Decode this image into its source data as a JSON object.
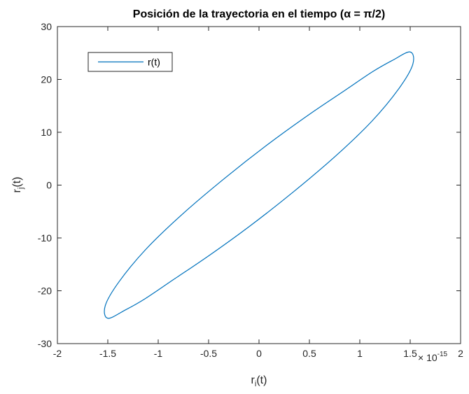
{
  "chart_data": {
    "type": "line",
    "title": "Posición de la trayectoria en el tiempo (α = π/2)",
    "xlabel": {
      "main": "r",
      "sub": "i",
      "tail": "(t)"
    },
    "ylabel": {
      "main": "r",
      "sub": "j",
      "tail": "(t)"
    },
    "x_exponent": {
      "prefix": "× 10",
      "power": "-15"
    },
    "xlim": [
      -2,
      2
    ],
    "ylim": [
      -30,
      30
    ],
    "x_ticks": [
      -2,
      -1.5,
      -1,
      -0.5,
      0,
      0.5,
      1,
      1.5,
      2
    ],
    "x_tick_labels": [
      "-2",
      "-1.5",
      "-1",
      "-0.5",
      "0",
      "0.5",
      "1",
      "1.5",
      "2"
    ],
    "y_ticks": [
      -30,
      -20,
      -10,
      0,
      10,
      20,
      30
    ],
    "y_tick_labels": [
      "-30",
      "-20",
      "-10",
      "0",
      "10",
      "20",
      "30"
    ],
    "grid": false,
    "legend": {
      "position": "top-left",
      "entries": [
        "r(t)"
      ]
    },
    "series": [
      {
        "name": "r(t)",
        "color": "#0072BD",
        "shape": "closed ellipse (parametric trajectory)",
        "x": [
          1.5,
          1.525,
          1.389,
          1.12,
          0.76,
          0.34,
          -0.087,
          -0.5,
          -0.85,
          -1.13,
          -1.323,
          -1.5,
          -1.525,
          -1.389,
          -1.12,
          -0.76,
          -0.34,
          0.087,
          0.5,
          0.85,
          1.13,
          1.323,
          1.5
        ],
        "y": [
          25.2,
          22.8,
          18.3,
          12.1,
          5.5,
          -1.3,
          -7.7,
          -13.4,
          -17.9,
          -21.5,
          -23.6,
          -25.2,
          -22.8,
          -18.3,
          -12.1,
          -5.5,
          1.3,
          7.7,
          13.4,
          17.9,
          21.5,
          23.6,
          25.2
        ]
      }
    ]
  }
}
